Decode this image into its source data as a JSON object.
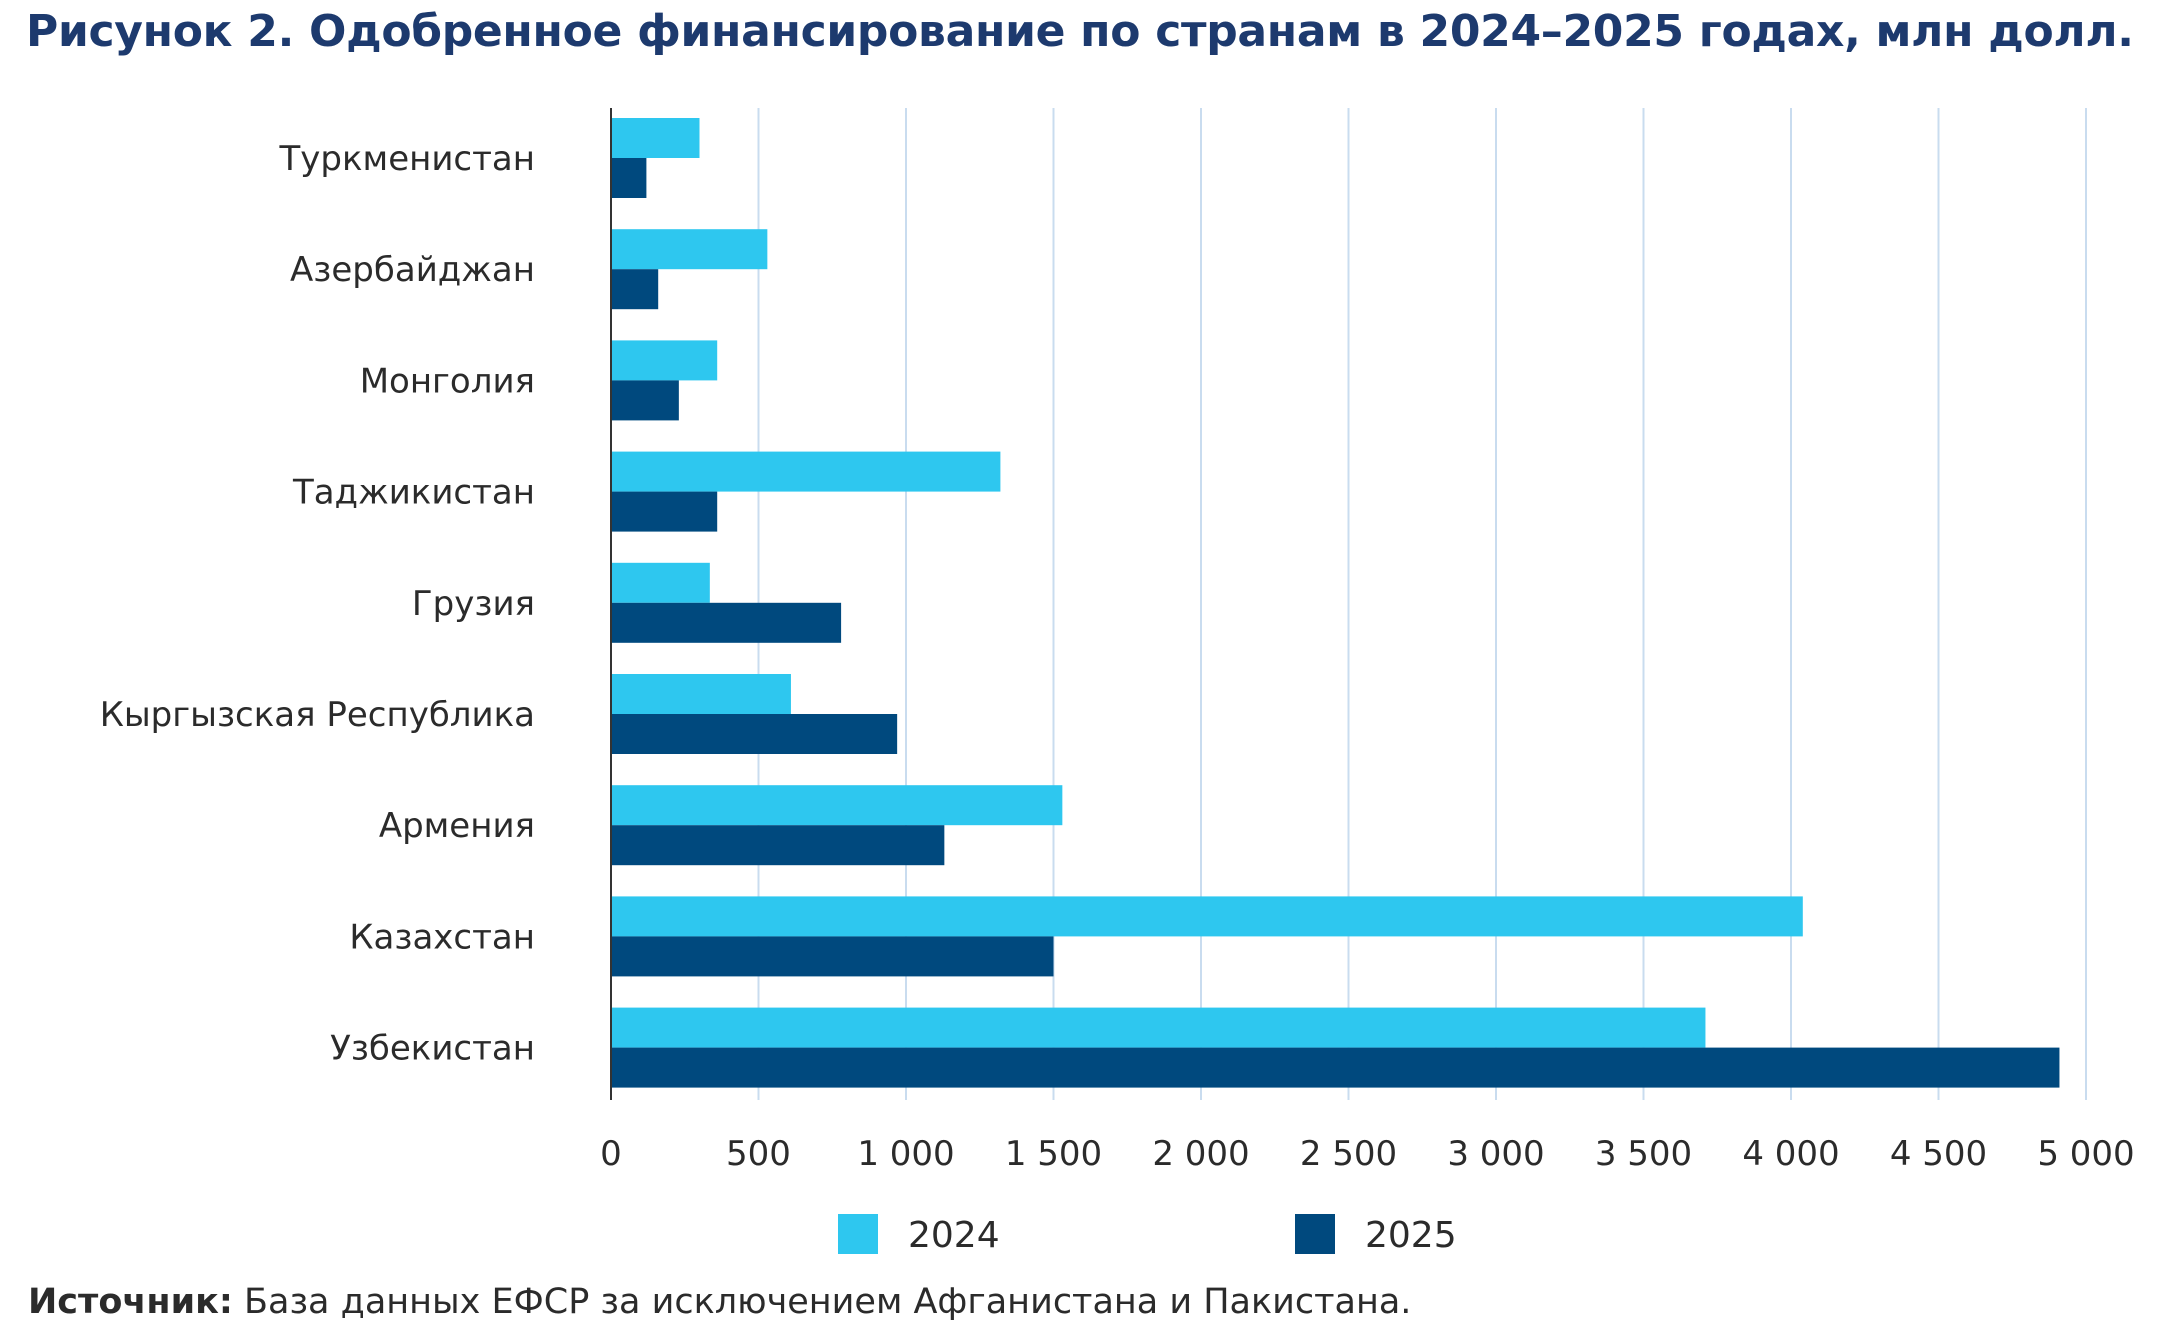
{
  "title": "Рисунок 2. Одобренное финансирование по странам в 2024–2025 годах, млн долл.",
  "source": {
    "label": "Источник:",
    "text": " База данных ЕФСР за исключением Афганистана и Пакистана."
  },
  "colors": {
    "series_2024": "#2ec7ef",
    "series_2025": "#00497e",
    "grid": "#c9dcef",
    "axis": "#333333"
  },
  "chart_data": {
    "type": "bar",
    "orientation": "horizontal",
    "categories": [
      "Туркменистан",
      "Азербайджан",
      "Монголия",
      "Таджикистан",
      "Грузия",
      "Кыргызская Республика",
      "Армения",
      "Казахстан",
      "Узбекистан"
    ],
    "series": [
      {
        "name": "2024",
        "values": [
          300,
          530,
          360,
          1320,
          335,
          610,
          1530,
          4040,
          3710
        ]
      },
      {
        "name": "2025",
        "values": [
          120,
          160,
          230,
          360,
          780,
          970,
          1130,
          1500,
          4910
        ]
      }
    ],
    "xlim": [
      0,
      5000
    ],
    "xticks": [
      0,
      500,
      1000,
      1500,
      2000,
      2500,
      3000,
      3500,
      4000,
      4500,
      5000
    ],
    "xtick_labels": [
      "0",
      "500",
      "1 000",
      "1 500",
      "2 000",
      "2 500",
      "3 000",
      "3 500",
      "4 000",
      "4 500",
      "5 000"
    ],
    "grid": true,
    "legend_position": "bottom"
  }
}
